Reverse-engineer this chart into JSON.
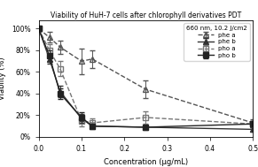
{
  "title": "Viability of HuH-7 cells after chlorophyll derivatives PDT",
  "subtitle": "660 nm, 10.2 J/cm2",
  "xlabel": "Concentration (μg/mL)",
  "ylabel": "Viablity (%)",
  "xlim": [
    0.0,
    0.5
  ],
  "ylim": [
    0.0,
    1.08
  ],
  "yticks": [
    0.0,
    0.2,
    0.4,
    0.6,
    0.8,
    1.0
  ],
  "ytick_labels": [
    "0%",
    "20%",
    "40%",
    "60%",
    "80%",
    "100%"
  ],
  "xticks": [
    0.0,
    0.1,
    0.2,
    0.3,
    0.4,
    0.5
  ],
  "xtick_labels": [
    "0.0",
    "0.1",
    "0.2",
    "0.3",
    "0.4",
    "0.5"
  ],
  "series": [
    {
      "key": "phe_a",
      "x": [
        0.0,
        0.025,
        0.05,
        0.1,
        0.125,
        0.25,
        0.5
      ],
      "y": [
        1.0,
        0.92,
        0.83,
        0.7,
        0.72,
        0.44,
        0.13
      ],
      "yerr": [
        0.02,
        0.05,
        0.06,
        0.12,
        0.08,
        0.08,
        0.03
      ],
      "color": "#555555",
      "linestyle": "dashed",
      "marker": "^",
      "fillstyle": "none",
      "label": "phe a"
    },
    {
      "key": "phe_b",
      "x": [
        0.0,
        0.025,
        0.05,
        0.1,
        0.125,
        0.25,
        0.5
      ],
      "y": [
        1.0,
        0.72,
        0.42,
        0.17,
        0.1,
        0.09,
        0.07
      ],
      "yerr": [
        0.02,
        0.04,
        0.05,
        0.04,
        0.02,
        0.02,
        0.02
      ],
      "color": "#333333",
      "linestyle": "solid",
      "marker": "^",
      "fillstyle": "full",
      "label": "phe b"
    },
    {
      "key": "pho_a",
      "x": [
        0.0,
        0.025,
        0.05,
        0.1,
        0.125,
        0.25,
        0.5
      ],
      "y": [
        1.0,
        0.8,
        0.63,
        0.15,
        0.13,
        0.18,
        0.12
      ],
      "yerr": [
        0.02,
        0.06,
        0.07,
        0.05,
        0.04,
        0.06,
        0.03
      ],
      "color": "#777777",
      "linestyle": "dashed",
      "marker": "s",
      "fillstyle": "none",
      "label": "pho a"
    },
    {
      "key": "pho_b",
      "x": [
        0.0,
        0.025,
        0.05,
        0.1,
        0.125,
        0.25,
        0.5
      ],
      "y": [
        1.0,
        0.75,
        0.4,
        0.18,
        0.1,
        0.09,
        0.12
      ],
      "yerr": [
        0.02,
        0.05,
        0.05,
        0.05,
        0.02,
        0.02,
        0.03
      ],
      "color": "#222222",
      "linestyle": "solid",
      "marker": "s",
      "fillstyle": "full",
      "label": "pho b"
    }
  ]
}
